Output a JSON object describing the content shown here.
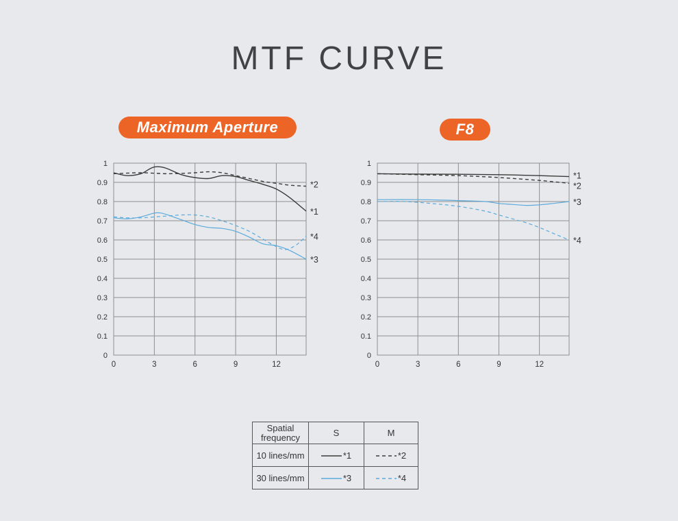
{
  "title": "MTF CURVE",
  "charts": [
    {
      "id": "left",
      "pill_label": "Maximum Aperture"
    },
    {
      "id": "right",
      "pill_label": "F8"
    }
  ],
  "axis": {
    "x_ticks": [
      "0",
      "3",
      "6",
      "9",
      "12"
    ],
    "y_ticks": [
      "0",
      "0.1",
      "0.2",
      "0.3",
      "0.4",
      "0.5",
      "0.6",
      "0.7",
      "0.8",
      "0.9",
      "1"
    ]
  },
  "colors": {
    "accent": "#ed6427",
    "dark_line": "#3a3a3a",
    "blue_line": "#5aaadb",
    "grid": "#8e8e8e"
  },
  "chart_data": [
    {
      "type": "line",
      "title": "Maximum Aperture",
      "xlim": [
        0,
        14.2
      ],
      "ylim": [
        0,
        1
      ],
      "x_ticks": [
        0,
        3,
        6,
        9,
        12
      ],
      "series": [
        {
          "name": "*1",
          "style": "solid",
          "color": "#3a3a3a",
          "x": [
            0,
            1,
            2,
            2.6,
            3,
            3.5,
            4,
            5,
            6,
            7,
            8,
            9,
            10,
            11,
            12,
            13,
            14.2
          ],
          "y": [
            0.95,
            0.935,
            0.945,
            0.968,
            0.98,
            0.98,
            0.97,
            0.94,
            0.925,
            0.92,
            0.935,
            0.93,
            0.91,
            0.89,
            0.865,
            0.82,
            0.75
          ]
        },
        {
          "name": "*2",
          "style": "dashed",
          "color": "#3a3a3a",
          "x": [
            0,
            2,
            4,
            6,
            7,
            8,
            9,
            10,
            11,
            12,
            13,
            14.2
          ],
          "y": [
            0.945,
            0.95,
            0.945,
            0.95,
            0.955,
            0.95,
            0.935,
            0.92,
            0.905,
            0.895,
            0.885,
            0.88
          ]
        },
        {
          "name": "*3",
          "style": "solid",
          "color": "#5aaadb",
          "x": [
            0,
            1,
            2,
            3,
            3.5,
            4,
            5,
            6,
            7,
            8,
            9,
            10,
            11,
            12,
            13,
            14.2
          ],
          "y": [
            0.715,
            0.71,
            0.72,
            0.74,
            0.74,
            0.73,
            0.705,
            0.68,
            0.665,
            0.66,
            0.645,
            0.615,
            0.58,
            0.57,
            0.545,
            0.5
          ]
        },
        {
          "name": "*4",
          "style": "dashed",
          "color": "#5aaadb",
          "x": [
            0,
            1,
            2,
            3,
            4,
            5,
            6,
            7,
            8,
            9,
            10,
            11,
            12,
            12.7,
            13.5,
            14.2
          ],
          "y": [
            0.72,
            0.715,
            0.715,
            0.72,
            0.725,
            0.73,
            0.73,
            0.72,
            0.7,
            0.675,
            0.645,
            0.605,
            0.565,
            0.55,
            0.575,
            0.62
          ]
        }
      ]
    },
    {
      "type": "line",
      "title": "F8",
      "xlim": [
        0,
        14.2
      ],
      "ylim": [
        0,
        1
      ],
      "x_ticks": [
        0,
        3,
        6,
        9,
        12
      ],
      "series": [
        {
          "name": "*1",
          "style": "solid",
          "color": "#3a3a3a",
          "x": [
            0,
            3,
            6,
            9,
            12,
            14.2
          ],
          "y": [
            0.945,
            0.943,
            0.942,
            0.94,
            0.935,
            0.93
          ]
        },
        {
          "name": "*2",
          "style": "dashed",
          "color": "#3a3a3a",
          "x": [
            0,
            3,
            6,
            9,
            12,
            14.2
          ],
          "y": [
            0.945,
            0.94,
            0.935,
            0.925,
            0.91,
            0.895
          ]
        },
        {
          "name": "*3",
          "style": "solid",
          "color": "#5aaadb",
          "x": [
            0,
            3,
            6,
            8,
            9,
            10,
            11,
            12,
            13,
            14.2
          ],
          "y": [
            0.81,
            0.81,
            0.805,
            0.8,
            0.79,
            0.785,
            0.78,
            0.783,
            0.79,
            0.8
          ]
        },
        {
          "name": "*4",
          "style": "dashed",
          "color": "#5aaadb",
          "x": [
            0,
            2,
            4,
            6,
            8,
            9,
            10,
            11,
            12,
            13,
            14.2
          ],
          "y": [
            0.8,
            0.8,
            0.79,
            0.775,
            0.75,
            0.73,
            0.71,
            0.69,
            0.665,
            0.635,
            0.6
          ]
        }
      ]
    }
  ],
  "legend": {
    "header": {
      "label_line1": "Spatial",
      "label_line2": "frequency",
      "s": "S",
      "m": "M"
    },
    "rows": [
      {
        "label": "10 lines/mm",
        "s_name": "*1",
        "m_name": "*2"
      },
      {
        "label": "30 lines/mm",
        "s_name": "*3",
        "m_name": "*4"
      }
    ]
  }
}
